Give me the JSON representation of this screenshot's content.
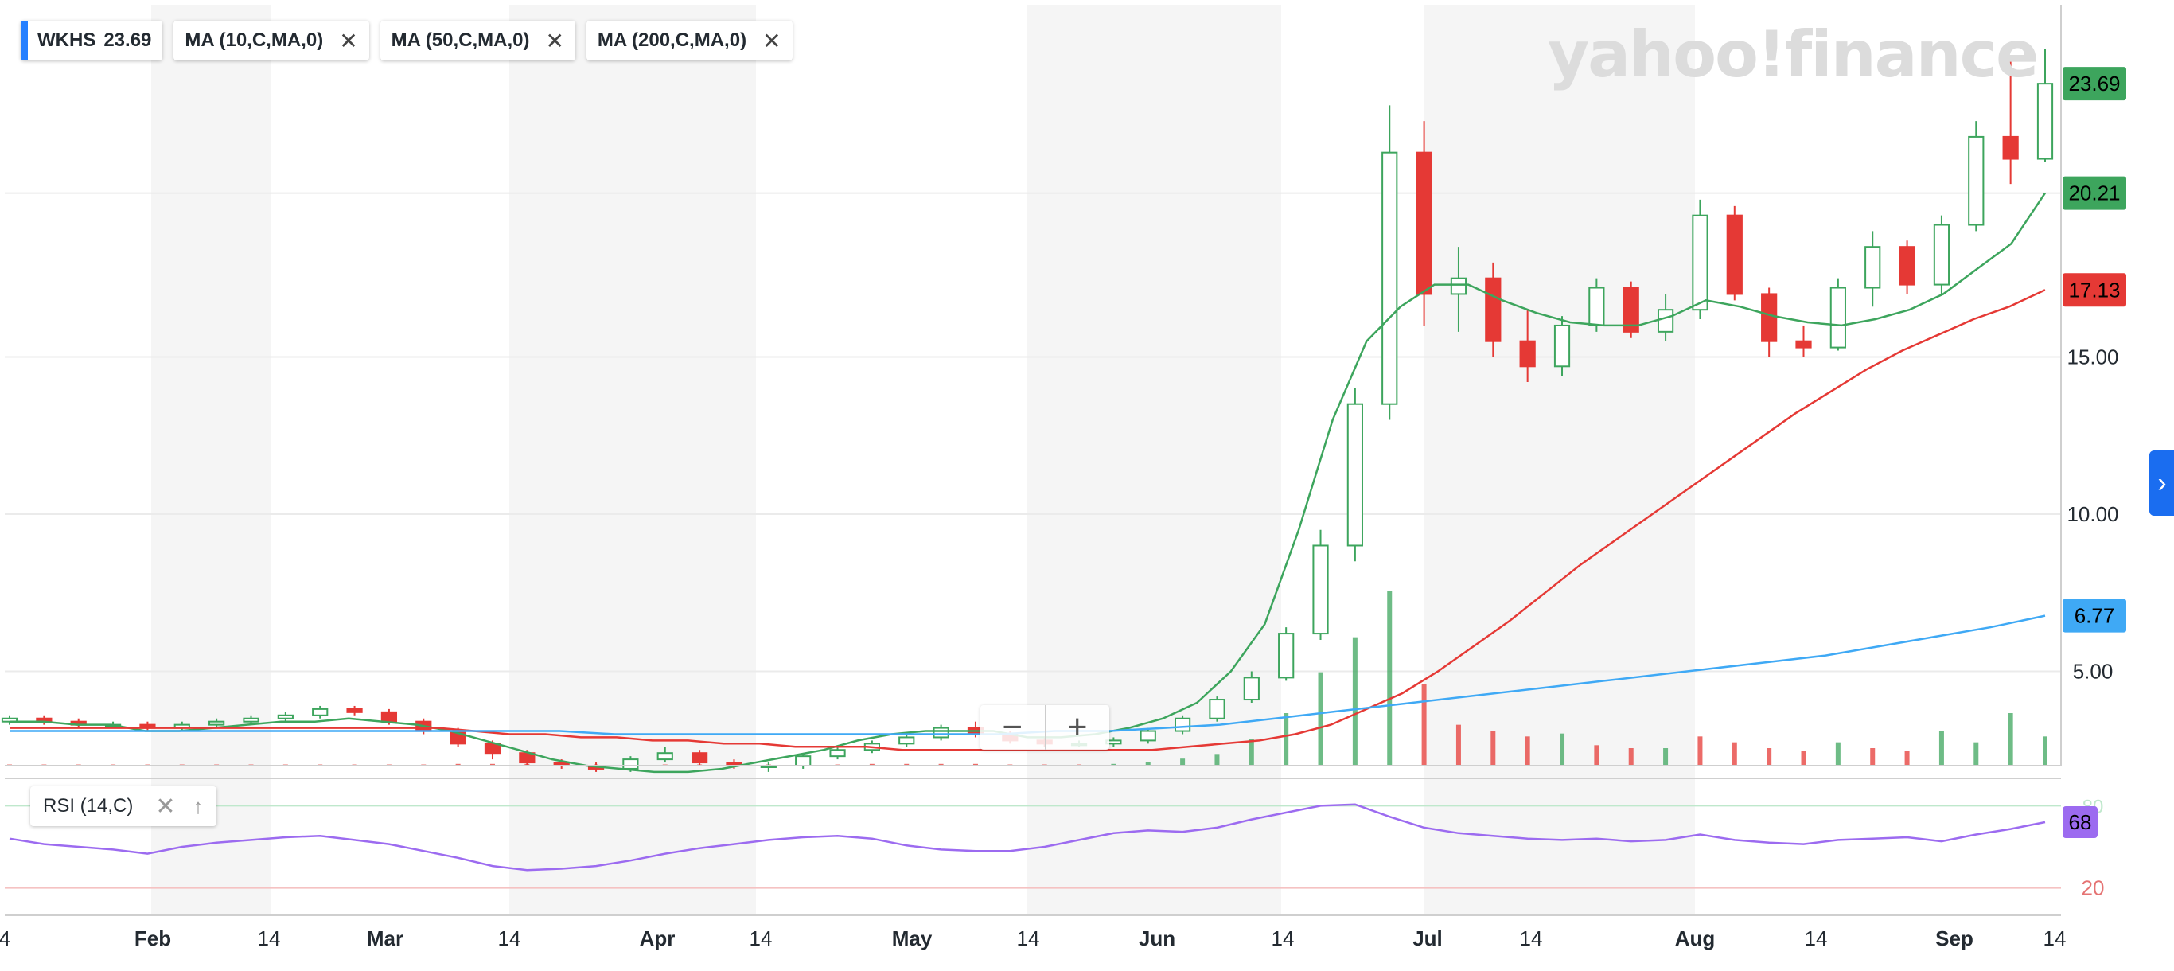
{
  "watermark": "yahoo!finance",
  "legend": {
    "symbol": "WKHS",
    "last": "23.69",
    "indicators": [
      "MA (10,C,MA,0)",
      "MA (50,C,MA,0)",
      "MA (200,C,MA,0)"
    ],
    "close_icon": "close-icon"
  },
  "rsi_panel": {
    "label": "RSI (14,C)",
    "value": "68",
    "overbought_label": "80",
    "oversold_label": "20"
  },
  "zoom": {
    "out": "−",
    "in": "+"
  },
  "side_tab": "›",
  "colors": {
    "up": "#3da55d",
    "down": "#e53935",
    "ma10": "#3da55d",
    "ma50": "#e53935",
    "ma200": "#3fa9f5",
    "rsi": "#9c6bf0",
    "brand": "#2680ff",
    "last_badge": "#3da55d"
  },
  "chart_data": {
    "type": "candlestick",
    "symbol": "WKHS",
    "y_axis": {
      "ticks": [
        "15.00",
        "10.00",
        "5.00"
      ],
      "range": [
        2.0,
        26.2
      ]
    },
    "x_axis": {
      "labels": [
        "4",
        "Feb",
        "14",
        "Mar",
        "14",
        "Apr",
        "14",
        "May",
        "14",
        "Jun",
        "14",
        "Jul",
        "14",
        "Aug",
        "14",
        "Sep",
        "14"
      ]
    },
    "price_badges": [
      {
        "label": "23.69",
        "value": 23.69,
        "color": "#3da55d"
      },
      {
        "label": "20.21",
        "value": 20.21,
        "color": "#3da55d"
      },
      {
        "label": "17.13",
        "value": 17.13,
        "color": "#e53935"
      },
      {
        "label": "6.77",
        "value": 6.77,
        "color": "#3fa9f5"
      }
    ],
    "series": [
      {
        "name": "MA (10,C,MA,0)",
        "color": "#3da55d",
        "values": [
          3.4,
          3.4,
          3.3,
          3.3,
          3.1,
          3.1,
          3.2,
          3.3,
          3.4,
          3.4,
          3.5,
          3.4,
          3.3,
          3.1,
          2.8,
          2.5,
          2.2,
          2.0,
          1.9,
          1.8,
          1.8,
          1.9,
          2.1,
          2.3,
          2.5,
          2.8,
          3.0,
          3.1,
          3.1,
          3.1,
          2.9,
          2.9,
          3.0,
          3.2,
          3.5,
          4.0,
          5.0,
          6.5,
          9.5,
          13.0,
          15.5,
          16.6,
          17.3,
          17.3,
          16.8,
          16.4,
          16.1,
          16.0,
          16.0,
          16.3,
          16.8,
          16.6,
          16.3,
          16.1,
          16.0,
          16.2,
          16.5,
          17.0,
          17.8,
          18.6,
          20.21
        ]
      },
      {
        "name": "MA (50,C,MA,0)",
        "color": "#e53935",
        "values": [
          3.2,
          3.2,
          3.2,
          3.2,
          3.2,
          3.2,
          3.2,
          3.2,
          3.2,
          3.2,
          3.2,
          3.2,
          3.2,
          3.1,
          3.0,
          3.0,
          2.9,
          2.9,
          2.8,
          2.8,
          2.7,
          2.7,
          2.6,
          2.6,
          2.6,
          2.5,
          2.5,
          2.5,
          2.5,
          2.5,
          2.5,
          2.5,
          2.5,
          2.6,
          2.7,
          2.8,
          3.0,
          3.3,
          3.8,
          4.3,
          5.0,
          5.8,
          6.6,
          7.5,
          8.4,
          9.2,
          10.0,
          10.8,
          11.6,
          12.4,
          13.2,
          13.9,
          14.6,
          15.2,
          15.7,
          16.2,
          16.6,
          17.13
        ]
      },
      {
        "name": "MA (200,C,MA,0)",
        "color": "#3fa9f5",
        "values": [
          3.1,
          3.1,
          3.1,
          3.1,
          3.1,
          3.1,
          3.1,
          3.1,
          3.1,
          3.1,
          3.1,
          3.0,
          3.0,
          3.0,
          3.0,
          3.0,
          3.0,
          3.0,
          3.0,
          3.1,
          3.1,
          3.2,
          3.3,
          3.5,
          3.7,
          3.9,
          4.1,
          4.3,
          4.5,
          4.7,
          4.9,
          5.1,
          5.3,
          5.5,
          5.8,
          6.1,
          6.4,
          6.77
        ]
      }
    ],
    "candles": [
      [
        3.4,
        3.6,
        3.3,
        3.5
      ],
      [
        3.5,
        3.6,
        3.3,
        3.4
      ],
      [
        3.4,
        3.5,
        3.2,
        3.3
      ],
      [
        3.3,
        3.4,
        3.2,
        3.3
      ],
      [
        3.3,
        3.4,
        3.1,
        3.2
      ],
      [
        3.2,
        3.4,
        3.1,
        3.3
      ],
      [
        3.3,
        3.5,
        3.2,
        3.4
      ],
      [
        3.4,
        3.6,
        3.3,
        3.5
      ],
      [
        3.5,
        3.7,
        3.4,
        3.6
      ],
      [
        3.6,
        3.9,
        3.5,
        3.8
      ],
      [
        3.8,
        3.9,
        3.6,
        3.7
      ],
      [
        3.7,
        3.8,
        3.3,
        3.4
      ],
      [
        3.4,
        3.5,
        3.0,
        3.1
      ],
      [
        3.1,
        3.2,
        2.6,
        2.7
      ],
      [
        2.7,
        2.8,
        2.2,
        2.4
      ],
      [
        2.4,
        2.5,
        2.0,
        2.1
      ],
      [
        2.1,
        2.2,
        1.9,
        2.0
      ],
      [
        2.0,
        2.1,
        1.8,
        1.9
      ],
      [
        1.9,
        2.3,
        1.8,
        2.2
      ],
      [
        2.2,
        2.6,
        2.1,
        2.4
      ],
      [
        2.4,
        2.5,
        2.0,
        2.1
      ],
      [
        2.1,
        2.2,
        1.9,
        2.0
      ],
      [
        2.0,
        2.1,
        1.8,
        2.0
      ],
      [
        2.0,
        2.4,
        1.9,
        2.3
      ],
      [
        2.3,
        2.6,
        2.2,
        2.5
      ],
      [
        2.5,
        2.8,
        2.4,
        2.7
      ],
      [
        2.7,
        3.0,
        2.6,
        2.9
      ],
      [
        2.9,
        3.3,
        2.8,
        3.2
      ],
      [
        3.2,
        3.4,
        2.9,
        3.0
      ],
      [
        3.0,
        3.1,
        2.7,
        2.8
      ],
      [
        2.8,
        2.9,
        2.6,
        2.7
      ],
      [
        2.7,
        2.8,
        2.6,
        2.7
      ],
      [
        2.7,
        2.9,
        2.6,
        2.8
      ],
      [
        2.8,
        3.2,
        2.7,
        3.1
      ],
      [
        3.1,
        3.6,
        3.0,
        3.5
      ],
      [
        3.5,
        4.2,
        3.4,
        4.1
      ],
      [
        4.1,
        5.0,
        4.0,
        4.8
      ],
      [
        4.8,
        6.4,
        4.7,
        6.2
      ],
      [
        6.2,
        9.5,
        6.0,
        9.0
      ],
      [
        9.0,
        14.0,
        8.5,
        13.5
      ],
      [
        13.5,
        23.0,
        13.0,
        21.5
      ],
      [
        21.5,
        22.5,
        16.0,
        17.0
      ],
      [
        17.0,
        18.5,
        15.8,
        17.5
      ],
      [
        17.5,
        18.0,
        15.0,
        15.5
      ],
      [
        15.5,
        16.5,
        14.2,
        14.7
      ],
      [
        14.7,
        16.3,
        14.4,
        16.0
      ],
      [
        16.0,
        17.5,
        15.8,
        17.2
      ],
      [
        17.2,
        17.4,
        15.6,
        15.8
      ],
      [
        15.8,
        17.0,
        15.5,
        16.5
      ],
      [
        16.5,
        20.0,
        16.2,
        19.5
      ],
      [
        19.5,
        19.8,
        16.8,
        17.0
      ],
      [
        17.0,
        17.2,
        15.0,
        15.5
      ],
      [
        15.5,
        16.0,
        15.0,
        15.3
      ],
      [
        15.3,
        17.5,
        15.2,
        17.2
      ],
      [
        17.2,
        19.0,
        16.6,
        18.5
      ],
      [
        18.5,
        18.7,
        17.0,
        17.3
      ],
      [
        17.3,
        19.5,
        17.0,
        19.2
      ],
      [
        19.2,
        22.5,
        19.0,
        22.0
      ],
      [
        22.0,
        24.5,
        20.5,
        21.3
      ],
      [
        21.3,
        24.8,
        21.2,
        23.69
      ]
    ],
    "volume": [
      [
        0.2,
        0
      ],
      [
        0.2,
        0
      ],
      [
        0.2,
        0
      ],
      [
        0.2,
        0
      ],
      [
        0.2,
        0
      ],
      [
        0.2,
        0
      ],
      [
        0.2,
        0
      ],
      [
        0.2,
        0
      ],
      [
        0.2,
        0
      ],
      [
        0.2,
        0
      ],
      [
        0.2,
        0
      ],
      [
        0.2,
        0
      ],
      [
        0.2,
        0
      ],
      [
        0.3,
        0
      ],
      [
        0.3,
        0
      ],
      [
        0.3,
        0
      ],
      [
        0.2,
        0
      ],
      [
        0.2,
        0
      ],
      [
        0.2,
        0
      ],
      [
        0.2,
        0
      ],
      [
        0.2,
        0
      ],
      [
        0.2,
        0
      ],
      [
        0.2,
        0
      ],
      [
        0.2,
        0
      ],
      [
        0.2,
        0
      ],
      [
        0.3,
        0
      ],
      [
        0.3,
        0
      ],
      [
        0.3,
        0
      ],
      [
        0.3,
        0
      ],
      [
        0.2,
        0
      ],
      [
        0.2,
        0
      ],
      [
        0.2,
        0
      ],
      [
        0.3,
        1
      ],
      [
        0.6,
        1
      ],
      [
        1.2,
        1
      ],
      [
        2.0,
        1
      ],
      [
        4.5,
        1
      ],
      [
        9.0,
        1
      ],
      [
        16.0,
        1
      ],
      [
        22.0,
        1
      ],
      [
        30.0,
        1
      ],
      [
        14.0,
        0
      ],
      [
        7.0,
        0
      ],
      [
        6.0,
        0
      ],
      [
        5.0,
        0
      ],
      [
        5.5,
        1
      ],
      [
        3.5,
        0
      ],
      [
        3.0,
        0
      ],
      [
        3.0,
        1
      ],
      [
        5.0,
        0
      ],
      [
        4.0,
        0
      ],
      [
        3.0,
        0
      ],
      [
        2.5,
        0
      ],
      [
        4.0,
        1
      ],
      [
        3.0,
        0
      ],
      [
        2.5,
        0
      ],
      [
        6.0,
        1
      ],
      [
        4.0,
        1
      ],
      [
        9.0,
        1
      ],
      [
        5.0,
        1
      ]
    ],
    "rsi": {
      "series": [
        56,
        52,
        50,
        48,
        45,
        50,
        53,
        55,
        57,
        58,
        55,
        52,
        47,
        42,
        36,
        33,
        34,
        36,
        40,
        45,
        49,
        52,
        55,
        57,
        58,
        56,
        51,
        48,
        47,
        47,
        50,
        55,
        60,
        62,
        61,
        64,
        70,
        75,
        80,
        81,
        72,
        64,
        60,
        58,
        56,
        55,
        56,
        54,
        55,
        59,
        55,
        53,
        52,
        55,
        56,
        57,
        54,
        59,
        63,
        68
      ],
      "levels": [
        80,
        20
      ]
    }
  }
}
